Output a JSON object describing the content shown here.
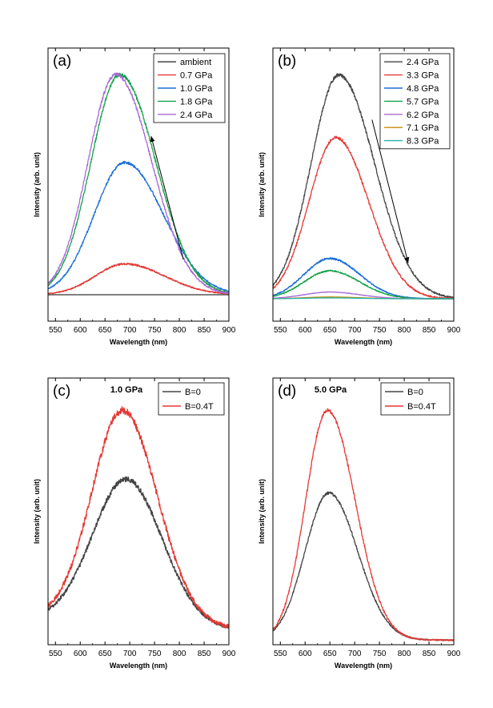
{
  "figure": {
    "background": "#ffffff"
  },
  "chart_data": [
    {
      "panel_label": "(a)",
      "type": "line",
      "xlabel": "Wavelength (nm)",
      "ylabel": "Intensity (arb. unit)",
      "xlim": [
        535,
        900
      ],
      "ylim": [
        -0.12,
        1.12
      ],
      "x_ticks": [
        550,
        600,
        650,
        700,
        750,
        800,
        850,
        900
      ],
      "y_ticks_shown": false,
      "grid": false,
      "legend_position": "top-right",
      "arrow": {
        "direction": "up",
        "from": [
          808,
          0.16
        ],
        "to": [
          743,
          0.72
        ]
      },
      "series": [
        {
          "name": "ambient",
          "color": "#333333",
          "peak_x": 680,
          "peak_y": 0.0,
          "width_l": 60,
          "width_r": 80,
          "noise": 0.0
        },
        {
          "name": "0.7 GPa",
          "color": "#e53935",
          "peak_x": 690,
          "peak_y": 0.14,
          "width_l": 60,
          "width_r": 80,
          "noise": 0.004
        },
        {
          "name": "1.0 GPa",
          "color": "#1e6fd9",
          "peak_x": 690,
          "peak_y": 0.6,
          "width_l": 62,
          "width_r": 78,
          "noise": 0.006
        },
        {
          "name": "1.8 GPa",
          "color": "#16a34a",
          "peak_x": 680,
          "peak_y": 1.0,
          "width_l": 58,
          "width_r": 72,
          "noise": 0.008
        },
        {
          "name": "2.4 GPa",
          "color": "#a86ad6",
          "peak_x": 672,
          "peak_y": 1.0,
          "width_l": 56,
          "width_r": 72,
          "noise": 0.008
        }
      ]
    },
    {
      "panel_label": "(b)",
      "type": "line",
      "xlabel": "Wavelength (nm)",
      "ylabel": "Intensity (arb. unit)",
      "xlim": [
        535,
        900
      ],
      "ylim": [
        -0.1,
        1.12
      ],
      "x_ticks": [
        550,
        600,
        650,
        700,
        750,
        800,
        850,
        900
      ],
      "y_ticks_shown": false,
      "grid": false,
      "legend_position": "top-right",
      "arrow": {
        "direction": "down",
        "from": [
          735,
          0.8
        ],
        "to": [
          808,
          0.16
        ]
      },
      "series": [
        {
          "name": "2.4 GPa",
          "color": "#454545",
          "peak_x": 668,
          "peak_y": 1.0,
          "width_l": 56,
          "width_r": 72,
          "noise": 0.008
        },
        {
          "name": "3.3 GPa",
          "color": "#e53935",
          "peak_x": 662,
          "peak_y": 0.72,
          "width_l": 54,
          "width_r": 66,
          "noise": 0.007
        },
        {
          "name": "4.8 GPa",
          "color": "#1e6fd9",
          "peak_x": 650,
          "peak_y": 0.18,
          "width_l": 52,
          "width_r": 60,
          "noise": 0.004
        },
        {
          "name": "5.7 GPa",
          "color": "#16a34a",
          "peak_x": 650,
          "peak_y": 0.125,
          "width_l": 52,
          "width_r": 60,
          "noise": 0.003
        },
        {
          "name": "6.2 GPa",
          "color": "#a86ad6",
          "peak_x": 650,
          "peak_y": 0.03,
          "width_l": 52,
          "width_r": 60,
          "noise": 0.001
        },
        {
          "name": "7.1 GPa",
          "color": "#c98a00",
          "peak_x": 650,
          "peak_y": 0.008,
          "width_l": 52,
          "width_r": 60,
          "noise": 0.0
        },
        {
          "name": "8.3 GPa",
          "color": "#20b2aa",
          "peak_x": 650,
          "peak_y": 0.004,
          "width_l": 52,
          "width_r": 60,
          "noise": 0.0
        }
      ]
    },
    {
      "panel_label": "(c)",
      "type": "line",
      "annotation": "1.0 GPa",
      "xlabel": "Wavelength (nm)",
      "ylabel": "Intensity (arb. unit)",
      "xlim": [
        535,
        900
      ],
      "ylim": [
        -0.02,
        1.14
      ],
      "x_ticks": [
        550,
        600,
        650,
        700,
        750,
        800,
        850,
        900
      ],
      "y_ticks_shown": false,
      "grid": false,
      "legend_position": "top-right",
      "series": [
        {
          "name": "B=0",
          "color": "#454545",
          "peak_x": 692,
          "peak_y": 0.7,
          "width_l": 68,
          "width_r": 72,
          "baseline": 0.09,
          "noise": 0.012
        },
        {
          "name": "B=0.4T",
          "color": "#e53935",
          "peak_x": 685,
          "peak_y": 1.0,
          "width_l": 62,
          "width_r": 70,
          "baseline": 0.1,
          "noise": 0.016
        }
      ]
    },
    {
      "panel_label": "(d)",
      "type": "line",
      "annotation": "5.0 GPa",
      "xlabel": "Wavelength (nm)",
      "ylabel": "Intensity (arb. unit)",
      "xlim": [
        535,
        900
      ],
      "ylim": [
        -0.02,
        1.14
      ],
      "x_ticks": [
        550,
        600,
        650,
        700,
        750,
        800,
        850,
        900
      ],
      "y_ticks_shown": false,
      "grid": false,
      "legend_position": "top-left",
      "series": [
        {
          "name": "B=0",
          "color": "#454545",
          "peak_x": 648,
          "peak_y": 0.64,
          "width_l": 48,
          "width_r": 58,
          "baseline": 0.0,
          "noise": 0.006
        },
        {
          "name": "B=0.4T",
          "color": "#e53935",
          "peak_x": 645,
          "peak_y": 1.0,
          "width_l": 44,
          "width_r": 56,
          "baseline": 0.0,
          "noise": 0.008
        }
      ]
    }
  ]
}
